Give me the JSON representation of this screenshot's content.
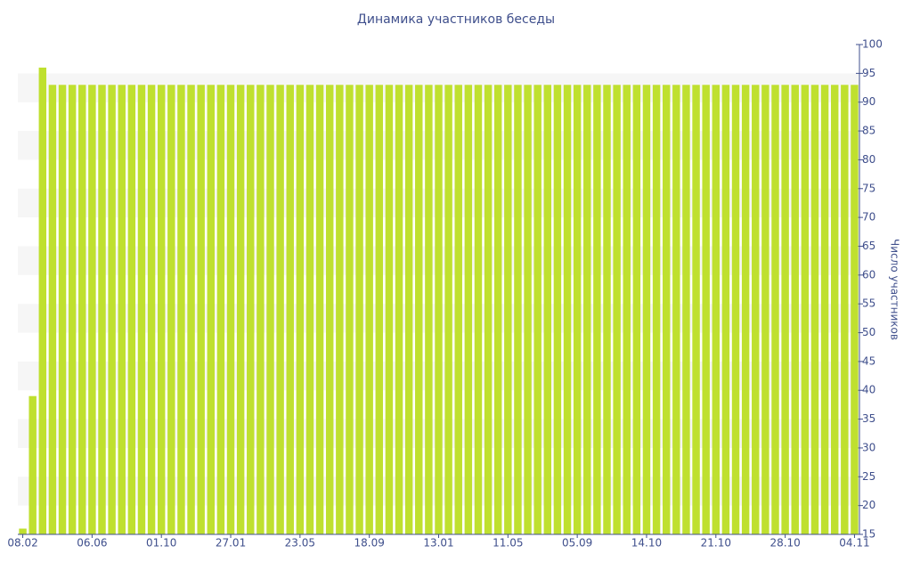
{
  "chart_data": {
    "type": "bar",
    "title": "Динамика участников беседы",
    "y_label": "Число участников",
    "categories": [
      "08.02",
      null,
      null,
      null,
      null,
      null,
      null,
      "06.06",
      null,
      null,
      null,
      null,
      null,
      null,
      "01.10",
      null,
      null,
      null,
      null,
      null,
      null,
      "27.01",
      null,
      null,
      null,
      null,
      null,
      null,
      "23.05",
      null,
      null,
      null,
      null,
      null,
      null,
      "18.09",
      null,
      null,
      null,
      null,
      null,
      null,
      "13.01",
      null,
      null,
      null,
      null,
      null,
      null,
      "11.05",
      null,
      null,
      null,
      null,
      null,
      null,
      "05.09",
      null,
      null,
      null,
      null,
      null,
      null,
      "14.10",
      null,
      null,
      null,
      null,
      null,
      null,
      "21.10",
      null,
      null,
      null,
      null,
      null,
      null,
      "28.10",
      null,
      null,
      null,
      null,
      null,
      null,
      "04.11"
    ],
    "values": [
      16,
      39,
      96,
      93,
      93,
      93,
      93,
      93,
      93,
      93,
      93,
      93,
      93,
      93,
      93,
      93,
      93,
      93,
      93,
      93,
      93,
      93,
      93,
      93,
      93,
      93,
      93,
      93,
      93,
      93,
      93,
      93,
      93,
      93,
      93,
      93,
      93,
      93,
      93,
      93,
      93,
      93,
      93,
      93,
      93,
      93,
      93,
      93,
      93,
      93,
      93,
      93,
      93,
      93,
      93,
      93,
      93,
      93,
      93,
      93,
      93,
      93,
      93,
      93,
      93,
      93,
      93,
      93,
      93,
      93,
      93,
      93,
      93,
      93,
      93,
      93,
      93,
      93,
      93,
      93,
      93,
      93,
      93,
      93,
      93
    ],
    "color": "#bfe02f",
    "ylim": [
      15,
      100
    ],
    "yticks": [
      15,
      20,
      25,
      30,
      35,
      40,
      45,
      50,
      55,
      60,
      65,
      70,
      75,
      80,
      85,
      90,
      95,
      100
    ],
    "y_axis_side": "right",
    "grid": true
  }
}
